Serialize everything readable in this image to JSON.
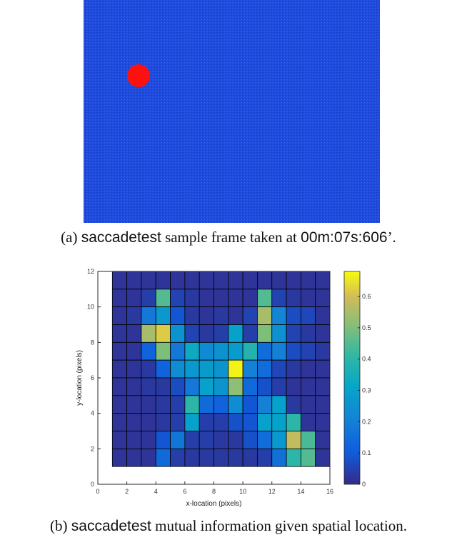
{
  "panel_a": {
    "caption_prefix": "(a)",
    "caption_name": "saccadetest",
    "caption_middle": " sample frame taken at ",
    "caption_time": "00m:07s:606",
    "caption_suffix": "’.",
    "colors": {
      "background": "#1f4bdc",
      "dot": "#ff1010"
    }
  },
  "panel_b": {
    "caption_prefix": "(b)",
    "caption_name": "saccadetest",
    "caption_rest": " mutual information given spatial location."
  },
  "chart_data": {
    "type": "heatmap",
    "title": "",
    "xlabel": "x-location (pixels)",
    "ylabel": "y-location (pixels)",
    "xlim": [
      0,
      16
    ],
    "ylim": [
      0,
      12
    ],
    "xticks": [
      0,
      2,
      4,
      6,
      8,
      10,
      12,
      14,
      16
    ],
    "yticks": [
      0,
      2,
      4,
      6,
      8,
      10,
      12
    ],
    "colorbar": {
      "min": 0,
      "max": 0.68,
      "ticks": [
        0,
        0.1,
        0.2,
        0.3,
        0.4,
        0.5,
        0.6
      ],
      "colormap": "parula"
    },
    "cells": {
      "x_start": 1,
      "y_start": 1,
      "size": 1,
      "cols": 15,
      "rows": 11
    },
    "z": [
      [
        0.02,
        0.02,
        0.02,
        0.02,
        0.02,
        0.02,
        0.02,
        0.02,
        0.02,
        0.02,
        0.02,
        0.02,
        0.02,
        0.02,
        0.02
      ],
      [
        0.02,
        0.02,
        0.04,
        0.45,
        0.05,
        0.03,
        0.02,
        0.02,
        0.02,
        0.02,
        0.45,
        0.05,
        0.03,
        0.02,
        0.02
      ],
      [
        0.02,
        0.03,
        0.18,
        0.27,
        0.09,
        0.03,
        0.02,
        0.03,
        0.02,
        0.05,
        0.55,
        0.22,
        0.07,
        0.06,
        0.02
      ],
      [
        0.02,
        0.02,
        0.55,
        0.62,
        0.25,
        0.05,
        0.03,
        0.04,
        0.3,
        0.04,
        0.5,
        0.25,
        0.05,
        0.03,
        0.02
      ],
      [
        0.02,
        0.02,
        0.12,
        0.5,
        0.18,
        0.33,
        0.23,
        0.25,
        0.28,
        0.38,
        0.15,
        0.2,
        0.07,
        0.05,
        0.03
      ],
      [
        0.02,
        0.02,
        0.03,
        0.12,
        0.24,
        0.27,
        0.28,
        0.26,
        0.67,
        0.2,
        0.15,
        0.06,
        0.03,
        0.02,
        0.02
      ],
      [
        0.02,
        0.02,
        0.03,
        0.03,
        0.07,
        0.18,
        0.3,
        0.26,
        0.52,
        0.14,
        0.08,
        0.04,
        0.02,
        0.02,
        0.02
      ],
      [
        0.02,
        0.02,
        0.02,
        0.03,
        0.04,
        0.4,
        0.14,
        0.12,
        0.24,
        0.09,
        0.2,
        0.3,
        0.03,
        0.02,
        0.02
      ],
      [
        0.02,
        0.02,
        0.02,
        0.03,
        0.04,
        0.3,
        0.04,
        0.04,
        0.08,
        0.09,
        0.3,
        0.3,
        0.4,
        0.02,
        0.02
      ],
      [
        0.02,
        0.02,
        0.02,
        0.09,
        0.17,
        0.04,
        0.04,
        0.03,
        0.03,
        0.08,
        0.15,
        0.27,
        0.58,
        0.44,
        0.02
      ],
      [
        0.02,
        0.02,
        0.02,
        0.14,
        0.04,
        0.03,
        0.03,
        0.03,
        0.03,
        0.03,
        0.04,
        0.16,
        0.4,
        0.45,
        0.02
      ]
    ]
  }
}
